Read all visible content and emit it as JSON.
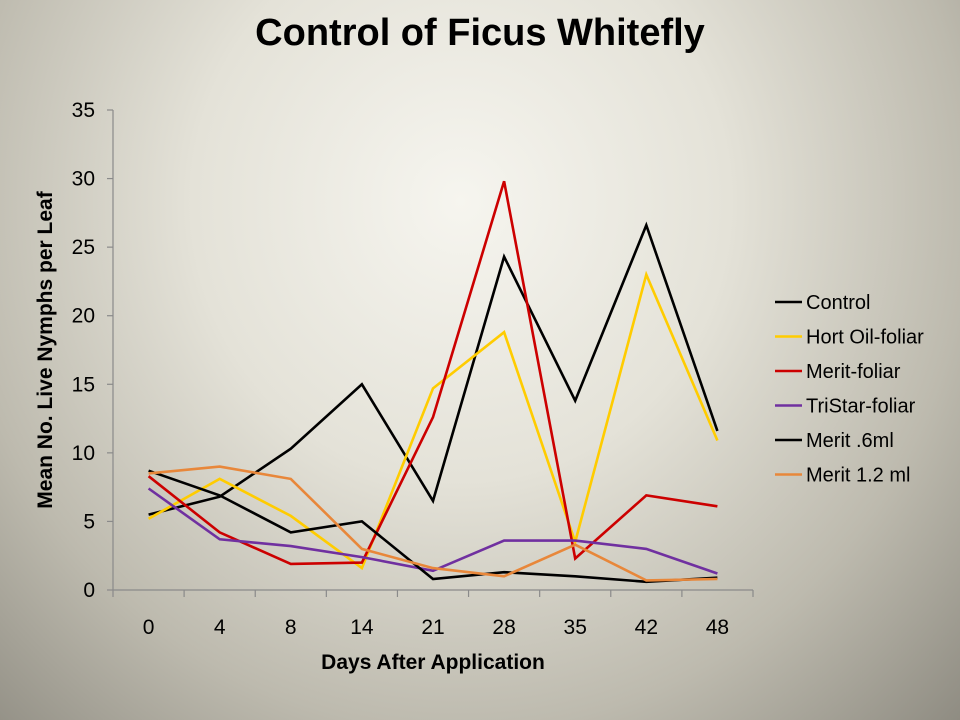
{
  "chart_data": {
    "type": "line",
    "title": "Control of Ficus Whitefly",
    "xlabel": "Days After Application",
    "ylabel": "Mean No. Live Nymphs per Leaf",
    "categories": [
      "0",
      "4",
      "8",
      "14",
      "21",
      "28",
      "35",
      "42",
      "48"
    ],
    "ylim": [
      0,
      35
    ],
    "yticks": [
      "0",
      "5",
      "10",
      "15",
      "20",
      "25",
      "30",
      "35"
    ],
    "grid": false,
    "legend_position": "right",
    "series": [
      {
        "name": "Control",
        "color": "#000000",
        "values": [
          5.5,
          6.8,
          10.3,
          15.0,
          6.5,
          24.3,
          13.8,
          26.6,
          11.6
        ]
      },
      {
        "name": "Hort Oil-foliar",
        "color": "#ffcc00",
        "values": [
          5.2,
          8.1,
          5.4,
          1.6,
          14.7,
          18.8,
          3.5,
          23.0,
          10.9
        ]
      },
      {
        "name": "Merit-foliar",
        "color": "#cc0000",
        "values": [
          8.3,
          4.2,
          1.9,
          2.0,
          12.6,
          29.8,
          2.3,
          6.9,
          6.1
        ]
      },
      {
        "name": "TriStar-foliar",
        "color": "#7030a0",
        "values": [
          7.4,
          3.7,
          3.2,
          2.4,
          1.4,
          3.6,
          3.6,
          3.0,
          1.2
        ]
      },
      {
        "name": "Merit .6ml",
        "color": "#000000",
        "values": [
          8.7,
          6.9,
          4.2,
          5.0,
          0.8,
          1.3,
          1.0,
          0.6,
          0.9
        ]
      },
      {
        "name": "Merit 1.2 ml",
        "color": "#e8873a",
        "values": [
          8.5,
          9.0,
          8.1,
          3.0,
          1.6,
          1.0,
          3.3,
          0.7,
          0.8
        ]
      }
    ]
  }
}
